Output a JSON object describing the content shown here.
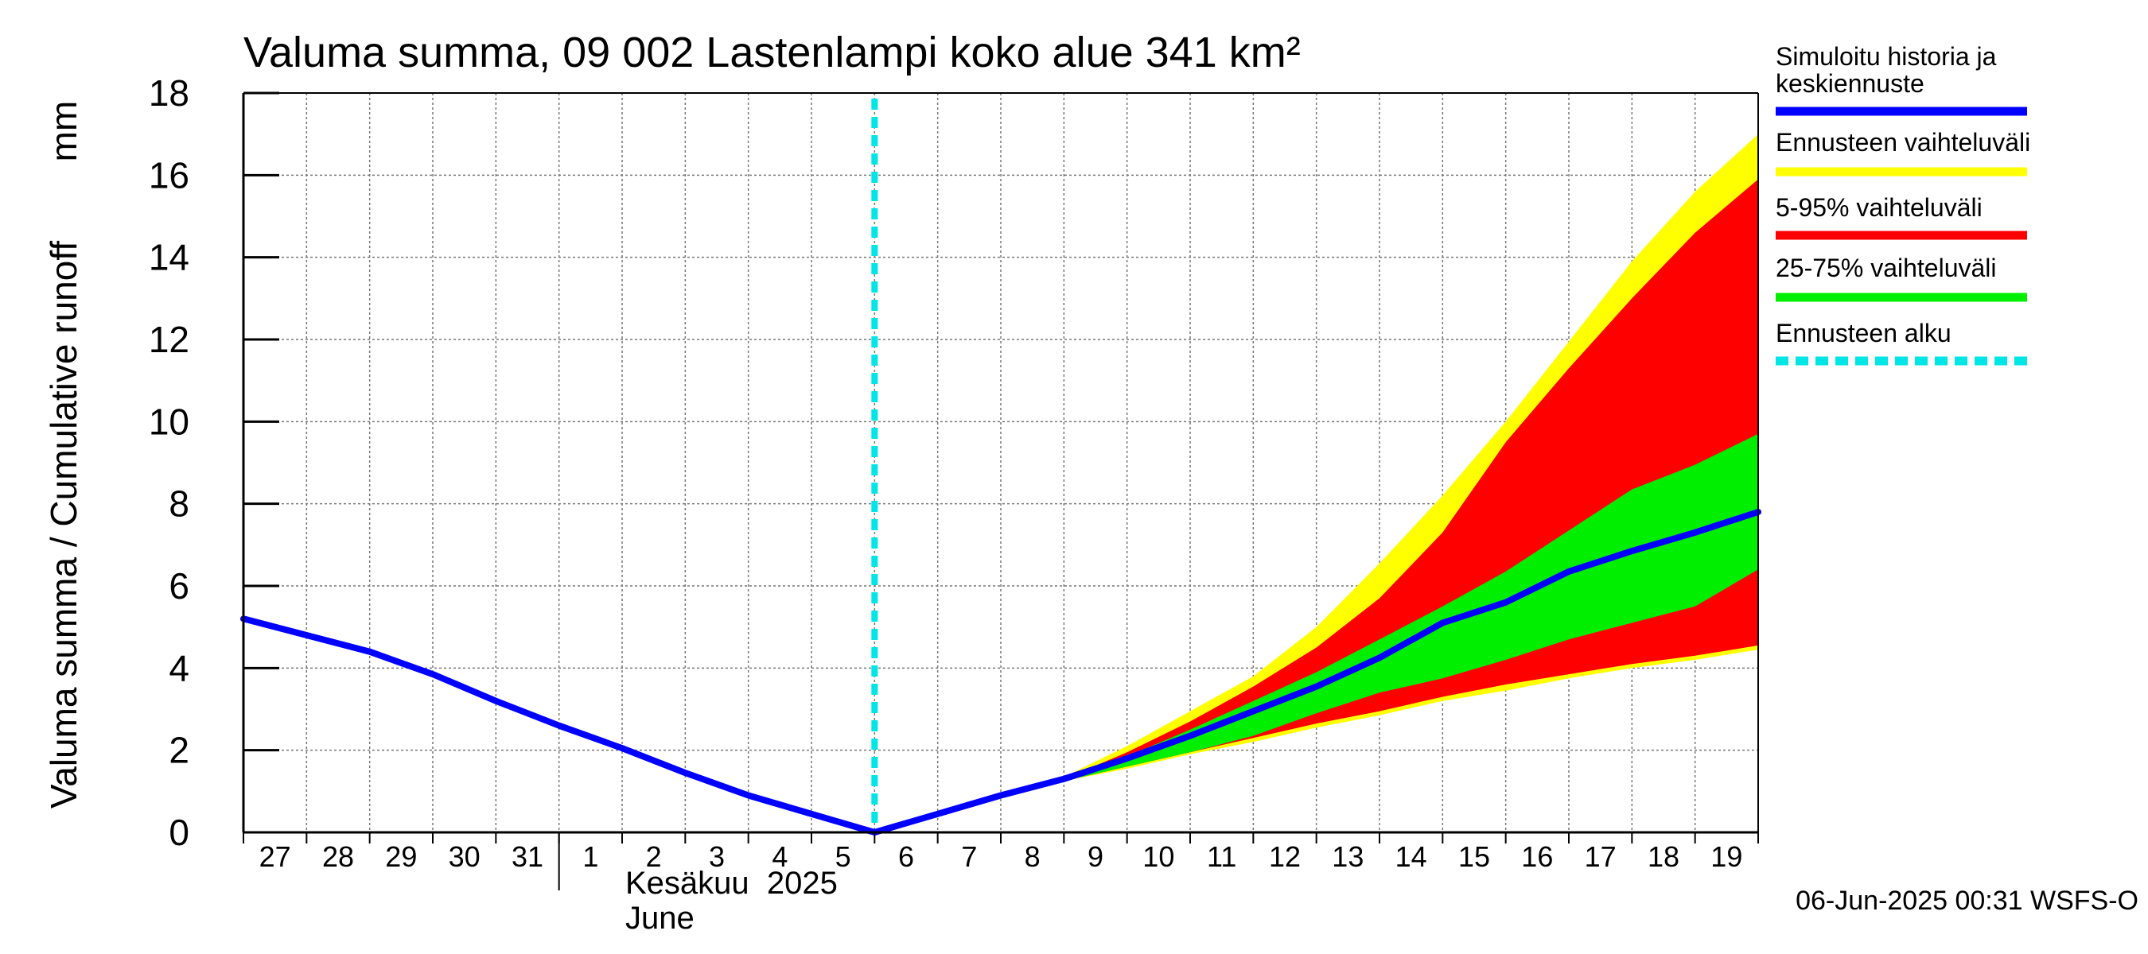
{
  "chart_data": {
    "type": "area",
    "title": "Valuma summa, 09 002 Lastenlampi koko alue 341 km²",
    "ylabel": "Valuma summa / Cumulative runoff",
    "yunit": "mm",
    "ylim": [
      0,
      18
    ],
    "yticks": [
      0,
      2,
      4,
      6,
      8,
      10,
      12,
      14,
      16,
      18
    ],
    "grid": true,
    "x_day_labels": [
      "27",
      "28",
      "29",
      "30",
      "31",
      "1",
      "2",
      "3",
      "4",
      "5",
      "6",
      "7",
      "8",
      "9",
      "10",
      "11",
      "12",
      "13",
      "14",
      "15",
      "16",
      "17",
      "18",
      "19"
    ],
    "month_label_fi": "Kesäkuu  2025",
    "month_label_en": "June",
    "forecast_start_index": 10,
    "x": [
      0,
      1,
      2,
      3,
      4,
      5,
      6,
      7,
      8,
      9,
      10,
      11,
      12,
      13,
      14,
      15,
      16,
      17,
      18,
      19,
      20,
      21,
      22,
      23,
      24
    ],
    "series": [
      {
        "name": "Simuloitu historia ja keskiennuste",
        "values": [
          5.2,
          4.8,
          4.4,
          3.85,
          3.2,
          2.6,
          2.05,
          1.45,
          0.9,
          0.45,
          0.0,
          0.45,
          0.9,
          1.3,
          1.8,
          2.35,
          2.95,
          3.55,
          4.25,
          5.1,
          5.6,
          6.35,
          6.85,
          7.3,
          7.8
        ]
      }
    ],
    "bands": [
      {
        "name": "Ennusteen vaihteluväli",
        "color": "#ffff00",
        "start_index": 12,
        "lower": [
          0.9,
          1.25,
          1.55,
          1.9,
          2.2,
          2.55,
          2.85,
          3.2,
          3.45,
          3.75,
          4.0,
          4.2,
          4.45
        ],
        "upper": [
          0.9,
          1.35,
          2.1,
          2.95,
          3.8,
          5.0,
          6.55,
          8.2,
          10.0,
          11.95,
          13.9,
          15.6,
          17.0
        ]
      },
      {
        "name": "5-95% vaihteluväli",
        "color": "#ff0000",
        "start_index": 12,
        "lower": [
          0.9,
          1.25,
          1.6,
          1.95,
          2.3,
          2.65,
          2.95,
          3.3,
          3.6,
          3.85,
          4.1,
          4.3,
          4.55
        ],
        "upper": [
          0.9,
          1.3,
          1.95,
          2.7,
          3.55,
          4.5,
          5.7,
          7.3,
          9.5,
          11.3,
          13.0,
          14.6,
          15.9
        ]
      },
      {
        "name": "25-75% vaihteluväli",
        "color": "#00ee00",
        "start_index": 12,
        "lower": [
          0.9,
          1.25,
          1.6,
          1.95,
          2.35,
          2.9,
          3.4,
          3.75,
          4.2,
          4.7,
          5.1,
          5.5,
          6.4
        ],
        "upper": [
          0.9,
          1.3,
          1.85,
          2.5,
          3.2,
          3.9,
          4.7,
          5.5,
          6.35,
          7.35,
          8.35,
          8.95,
          9.7
        ]
      }
    ],
    "legend": [
      {
        "label": "Simuloitu historia ja keskiennuste",
        "color": "#0000ff",
        "style": "solid"
      },
      {
        "label": "Ennusteen vaihteluväli",
        "color": "#ffff00",
        "style": "solid"
      },
      {
        "label": "5-95% vaihteluväli",
        "color": "#ff0000",
        "style": "solid"
      },
      {
        "label": "25-75% vaihteluväli",
        "color": "#00ee00",
        "style": "solid"
      },
      {
        "label": "Ennusteen alku",
        "color": "#00e5e5",
        "style": "dashed"
      }
    ],
    "legend_position": "right",
    "footer": "06-Jun-2025 00:31 WSFS-O"
  }
}
